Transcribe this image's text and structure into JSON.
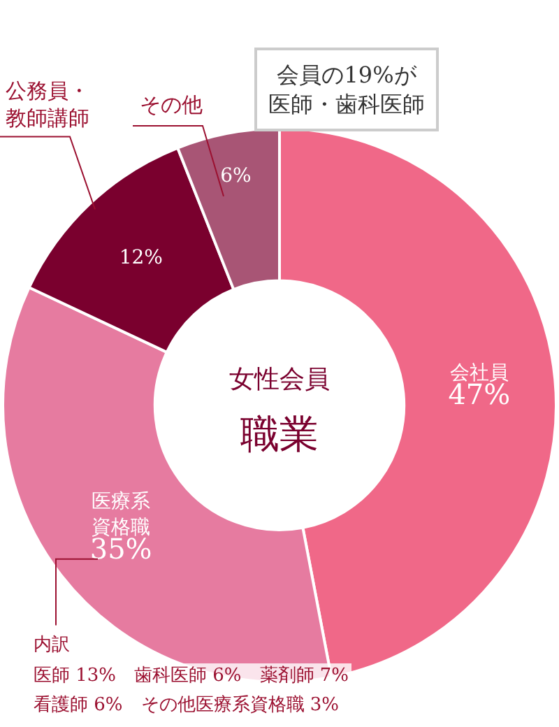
{
  "chart_data": {
    "type": "donut",
    "title": "女性会員",
    "subtitle": "職業",
    "categories": [
      "会社員",
      "医療系資格職",
      "公務員・教師講師",
      "その他"
    ],
    "values": [
      47,
      35,
      12,
      6
    ],
    "value_labels": [
      "47%",
      "35%",
      "12%",
      "6%"
    ],
    "colors": [
      "#f06888",
      "#e67ba0",
      "#7a002e",
      "#a85575"
    ],
    "legend": false,
    "annotations": [
      "会員の19%が医師・歯科医師",
      "内訳",
      "医師 13%　歯科医師 6%　薬剤師 7%",
      "看護師 6%　その他医療系資格職 3%"
    ]
  }
}
